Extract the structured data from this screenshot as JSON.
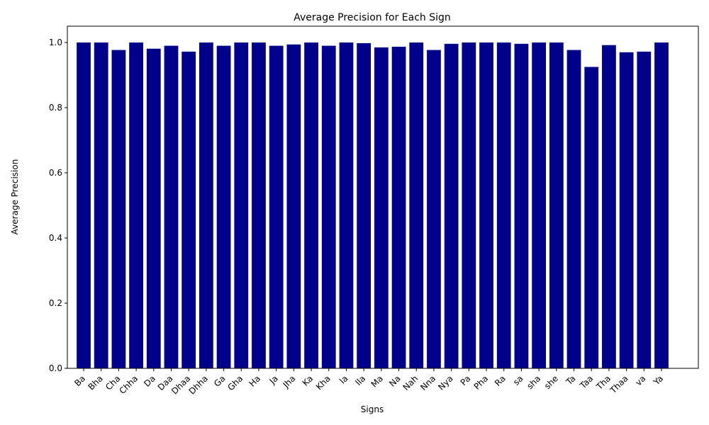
{
  "chart_data": {
    "type": "bar",
    "title": "Average Precision for Each Sign",
    "xlabel": "Signs",
    "ylabel": "Average Precision",
    "categories": [
      "Ba",
      "Bha",
      "Cha",
      "Chha",
      "Da",
      "Daa",
      "Dhaa",
      "Dhha",
      "Ga",
      "Gha",
      "Ha",
      "Ja",
      "Jha",
      "Ka",
      "Kha",
      "la",
      "lla",
      "Ma",
      "Na",
      "Nah",
      "Nna",
      "Nya",
      "Pa",
      "Pha",
      "Ra",
      "sa",
      "sha",
      "she",
      "Ta",
      "Taa",
      "Tha",
      "Thaa",
      "va",
      "Ya"
    ],
    "values": [
      1.0,
      1.0,
      0.977,
      1.0,
      0.981,
      0.99,
      0.972,
      1.0,
      0.99,
      1.0,
      1.0,
      0.99,
      0.994,
      1.0,
      0.99,
      1.0,
      0.998,
      0.985,
      0.987,
      1.0,
      0.977,
      0.996,
      1.0,
      1.0,
      1.0,
      0.996,
      1.0,
      1.0,
      0.977,
      0.925,
      0.992,
      0.97,
      0.972,
      1.0
    ],
    "ylim": [
      0,
      1.05
    ],
    "yticks": [
      "0.0",
      "0.2",
      "0.4",
      "0.6",
      "0.8",
      "1.0"
    ],
    "bar_color": "#00008b",
    "grid": false,
    "legend": "none"
  }
}
